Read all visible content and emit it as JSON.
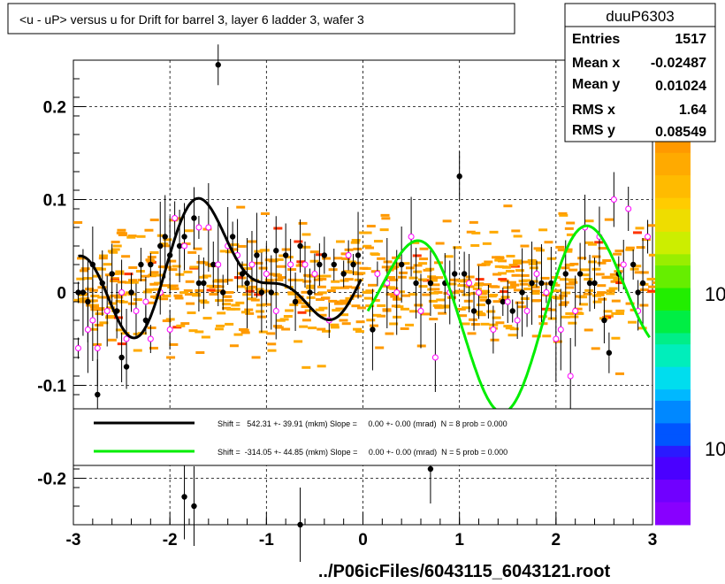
{
  "chart_data": {
    "type": "scatter",
    "title": "<u - uP>       versus   u for Drift for barrel 3, layer 6 ladder 3, wafer 3",
    "xlabel": "../P06icFiles/6043115_6043121.root",
    "ylabel": "",
    "xlim": [
      -3,
      3
    ],
    "ylim": [
      -0.25,
      0.25
    ],
    "x_ticks": [
      "-3",
      "-2",
      "-1",
      "0",
      "1",
      "2",
      "3"
    ],
    "y_ticks": [
      "-0.2",
      "-0.1",
      "0",
      "0.1",
      "0.2"
    ],
    "grid": true,
    "stats": {
      "name": "duuP6303",
      "rows": [
        {
          "label": "Entries",
          "value": "1517"
        },
        {
          "label": "Mean x",
          "value": "-0.02487"
        },
        {
          "label": "Mean y",
          "value": "0.01024"
        },
        {
          "label": "RMS x",
          "value": "1.64"
        },
        {
          "label": "RMS y",
          "value": "0.08549"
        }
      ]
    },
    "palette_labels": [
      "10",
      "10"
    ],
    "legend": {
      "placement": "bottom",
      "entries": [
        {
          "color": "#000000",
          "text": "Shift =   542.31 +- 39.91 (mkm) Slope =     0.00 +- 0.00 (mrad)  N = 8 prob = 0.000"
        },
        {
          "color": "#00ee00",
          "text": "Shift =  -314.05 +- 44.85 (mkm) Slope =     0.00 +- 0.00 (mrad)  N = 5 prob = 0.000"
        }
      ]
    },
    "series": [
      {
        "marker": "black-dot",
        "points": [
          [
            -2.95,
            0.0
          ],
          [
            -2.9,
            0.0
          ],
          [
            -2.85,
            -0.01
          ],
          [
            -2.8,
            0.03
          ],
          [
            -2.75,
            -0.11
          ],
          [
            -2.7,
            0.01
          ],
          [
            -2.6,
            0.02
          ],
          [
            -2.55,
            -0.02
          ],
          [
            -2.5,
            -0.07
          ],
          [
            -2.45,
            -0.08
          ],
          [
            -2.4,
            0.0
          ],
          [
            -2.3,
            0.03
          ],
          [
            -2.25,
            -0.03
          ],
          [
            -2.2,
            0.03
          ],
          [
            -2.1,
            0.05
          ],
          [
            -2.05,
            0.06
          ],
          [
            -2.0,
            0.04
          ],
          [
            -1.9,
            0.05
          ],
          [
            -1.85,
            0.06
          ],
          [
            -1.75,
            0.08
          ],
          [
            -1.7,
            0.01
          ],
          [
            -1.65,
            0.01
          ],
          [
            -1.55,
            0.03
          ],
          [
            -1.5,
            0.245
          ],
          [
            -1.45,
            0.0
          ],
          [
            -1.35,
            0.06
          ],
          [
            -1.25,
            0.02
          ],
          [
            -1.2,
            0.01
          ],
          [
            -1.1,
            0.04
          ],
          [
            -1.05,
            0.0
          ],
          [
            -0.95,
            0.0
          ],
          [
            -0.9,
            0.045
          ],
          [
            -0.8,
            0.04
          ],
          [
            -0.7,
            -0.01
          ],
          [
            -0.65,
            0.05
          ],
          [
            -0.55,
            0.0
          ],
          [
            -0.45,
            0.03
          ],
          [
            -0.4,
            0.04
          ],
          [
            -0.3,
            0.03
          ],
          [
            -0.2,
            0.02
          ],
          [
            -0.1,
            0.03
          ],
          [
            -0.05,
            0.04
          ],
          [
            0.1,
            -0.04
          ],
          [
            0.4,
            0.03
          ],
          [
            0.55,
            0.01
          ],
          [
            0.7,
            0.01
          ],
          [
            0.85,
            0.01
          ],
          [
            0.95,
            0.02
          ],
          [
            1.0,
            0.125
          ],
          [
            1.05,
            0.02
          ],
          [
            1.15,
            -0.02
          ],
          [
            1.3,
            -0.01
          ],
          [
            1.45,
            -0.01
          ],
          [
            1.55,
            -0.02
          ],
          [
            1.65,
            0.0
          ],
          [
            1.75,
            0.01
          ],
          [
            1.85,
            0.01
          ],
          [
            1.95,
            0.01
          ],
          [
            2.1,
            0.02
          ],
          [
            2.25,
            0.02
          ],
          [
            2.35,
            0.01
          ],
          [
            2.4,
            0.01
          ],
          [
            2.5,
            -0.03
          ],
          [
            2.55,
            -0.065
          ],
          [
            2.65,
            0.02
          ],
          [
            2.8,
            0.03
          ],
          [
            2.85,
            0.0
          ],
          [
            2.9,
            0.01
          ],
          [
            -1.85,
            -0.22
          ],
          [
            -1.75,
            -0.23
          ],
          [
            -0.65,
            -0.25
          ],
          [
            0.7,
            -0.19
          ]
        ]
      },
      {
        "marker": "open-magenta-circle",
        "points": [
          [
            -2.95,
            -0.06
          ],
          [
            -2.85,
            -0.04
          ],
          [
            -2.8,
            -0.03
          ],
          [
            -2.75,
            -0.06
          ],
          [
            -2.65,
            -0.02
          ],
          [
            -2.5,
            0.0
          ],
          [
            -2.45,
            -0.05
          ],
          [
            -2.35,
            -0.02
          ],
          [
            -2.25,
            -0.01
          ],
          [
            -2.1,
            0.0
          ],
          [
            -2.0,
            -0.04
          ],
          [
            -1.95,
            0.08
          ],
          [
            -1.85,
            0.05
          ],
          [
            -1.7,
            0.07
          ],
          [
            -1.6,
            0.07
          ],
          [
            -1.5,
            0.03
          ],
          [
            -1.4,
            0.05
          ],
          [
            -1.3,
            0.04
          ],
          [
            -1.15,
            0.03
          ],
          [
            -1.0,
            0.02
          ],
          [
            -0.9,
            -0.02
          ],
          [
            -0.75,
            0.03
          ],
          [
            -0.6,
            0.03
          ],
          [
            -0.5,
            0.02
          ],
          [
            -0.35,
            -0.03
          ],
          [
            -0.15,
            0.04
          ],
          [
            0.15,
            0.02
          ],
          [
            0.25,
            0.01
          ],
          [
            0.35,
            0.0
          ],
          [
            0.5,
            0.06
          ],
          [
            0.6,
            -0.02
          ],
          [
            0.75,
            -0.07
          ],
          [
            0.9,
            0.0
          ],
          [
            1.1,
            0.01
          ],
          [
            1.2,
            0.0
          ],
          [
            1.35,
            -0.04
          ],
          [
            1.5,
            -0.01
          ],
          [
            1.6,
            -0.03
          ],
          [
            1.7,
            -0.02
          ],
          [
            1.8,
            0.02
          ],
          [
            1.9,
            0.0
          ],
          [
            2.0,
            -0.05
          ],
          [
            2.05,
            -0.04
          ],
          [
            2.15,
            -0.09
          ],
          [
            2.2,
            -0.02
          ],
          [
            2.3,
            0.07
          ],
          [
            2.45,
            0.06
          ],
          [
            2.6,
            0.1
          ],
          [
            2.7,
            0.03
          ],
          [
            2.75,
            0.09
          ],
          [
            2.85,
            -0.02
          ],
          [
            2.95,
            0.06
          ],
          [
            -2.2,
            -0.05
          ]
        ]
      }
    ],
    "fits": [
      {
        "name": "Shift =   542.31 +- 39.91 (mkm) Slope =     0.00 +- 0.00 (mrad)  N = 8 prob = 0.000",
        "color": "#000000",
        "x_range": [
          -2.95,
          -0.02
        ]
      },
      {
        "name": "Shift =  -314.05 +- 44.85 (mkm) Slope =     0.00 +- 0.00 (mrad)  N = 5 prob = 0.000",
        "color": "#00ee00",
        "x_range": [
          0.05,
          2.97
        ]
      }
    ]
  }
}
